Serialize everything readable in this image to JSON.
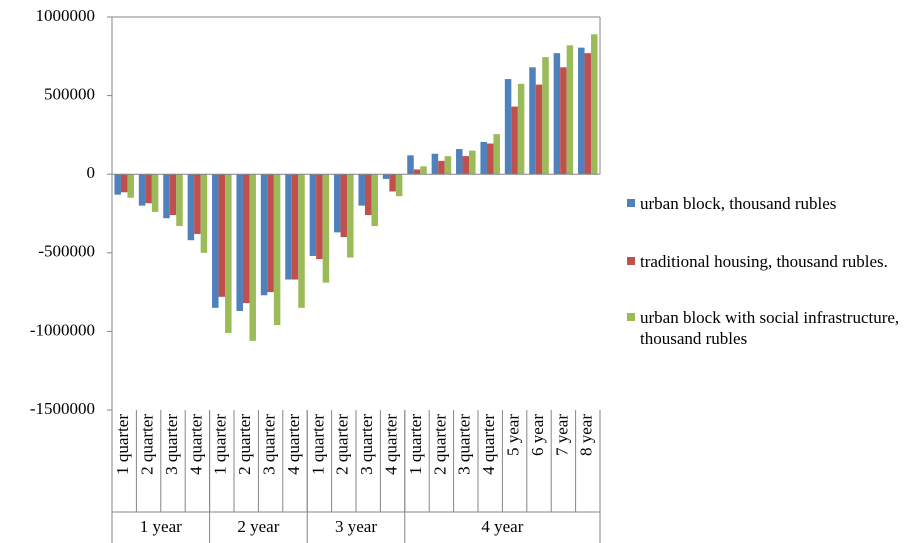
{
  "chart_data": {
    "type": "bar",
    "category_groups": [
      {
        "label": "1 year",
        "categories": [
          "1 quarter",
          "2 quarter",
          "3 quarter",
          "4 quarter"
        ]
      },
      {
        "label": "2 year",
        "categories": [
          "1 quarter",
          "2 quarter",
          "3 quarter",
          "4 quarter"
        ]
      },
      {
        "label": "3 year",
        "categories": [
          "1 quarter",
          "2 quarter",
          "3 quarter",
          "4 quarter"
        ]
      },
      {
        "label": "4 year",
        "categories": [
          "1 quarter",
          "2 quarter",
          "3 quarter",
          "4 quarter",
          "5 year",
          "6 year",
          "7 year",
          "8 year"
        ]
      }
    ],
    "series": [
      {
        "name": "urban block, thousand rubles",
        "color": "#4f81bd",
        "values": [
          -130000,
          -200000,
          -280000,
          -420000,
          -850000,
          -870000,
          -770000,
          -670000,
          -520000,
          -370000,
          -200000,
          -30000,
          120000,
          130000,
          160000,
          205000,
          605000,
          680000,
          770000,
          805000
        ]
      },
      {
        "name": "traditional housing, thousand rubles.",
        "color": "#c0504d",
        "values": [
          -115000,
          -185000,
          -260000,
          -380000,
          -780000,
          -820000,
          -750000,
          -670000,
          -540000,
          -400000,
          -260000,
          -110000,
          30000,
          85000,
          115000,
          195000,
          430000,
          570000,
          680000,
          770000
        ]
      },
      {
        "name": "urban block with social infrastructure, thousand rubles",
        "color": "#9bbb59",
        "values": [
          -150000,
          -240000,
          -330000,
          -500000,
          -1010000,
          -1060000,
          -960000,
          -850000,
          -690000,
          -530000,
          -330000,
          -140000,
          50000,
          115000,
          150000,
          255000,
          575000,
          745000,
          820000,
          890000
        ]
      }
    ],
    "ylim": [
      -1500000,
      1000000
    ],
    "yticks": [
      -1500000,
      -1000000,
      -500000,
      0,
      500000,
      1000000
    ],
    "grid": false,
    "legend": "right"
  }
}
